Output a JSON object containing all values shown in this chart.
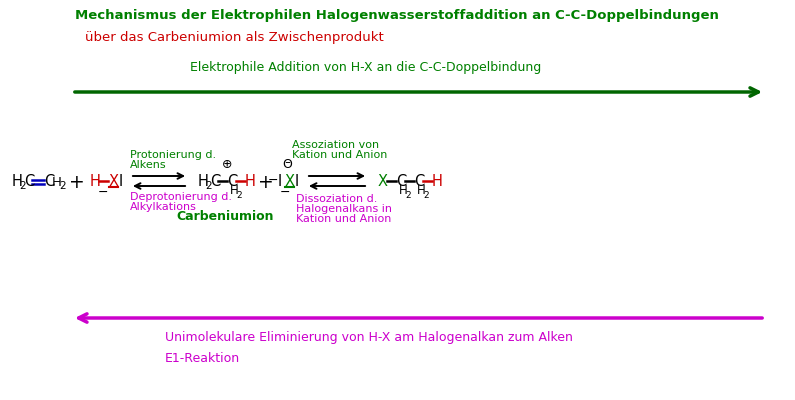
{
  "title": "Mechanismus der Elektrophilen Halogenwasserstoffaddition an C-C-Doppelbindungen",
  "subtitle": "über das Carbeniumion als Zwischenprodukt",
  "label_addition": "Elektrophile Addition von H-X an die C-C-Doppelbindung",
  "label_elimination": "Unimolekulare Eliminierung von H-X am Halogenalkan zum Alken\nE1-Reaktion",
  "title_color": "#008000",
  "subtitle_color": "#cc0000",
  "label_addition_color": "#008000",
  "label_elimination_color": "#cc00cc",
  "arrow_addition_color": "#006600",
  "arrow_elimination_color": "#cc00cc",
  "black": "#000000",
  "red": "#cc0000",
  "green": "#008000",
  "blue": "#0000bb",
  "magenta": "#cc00cc",
  "bg_color": "#ffffff"
}
